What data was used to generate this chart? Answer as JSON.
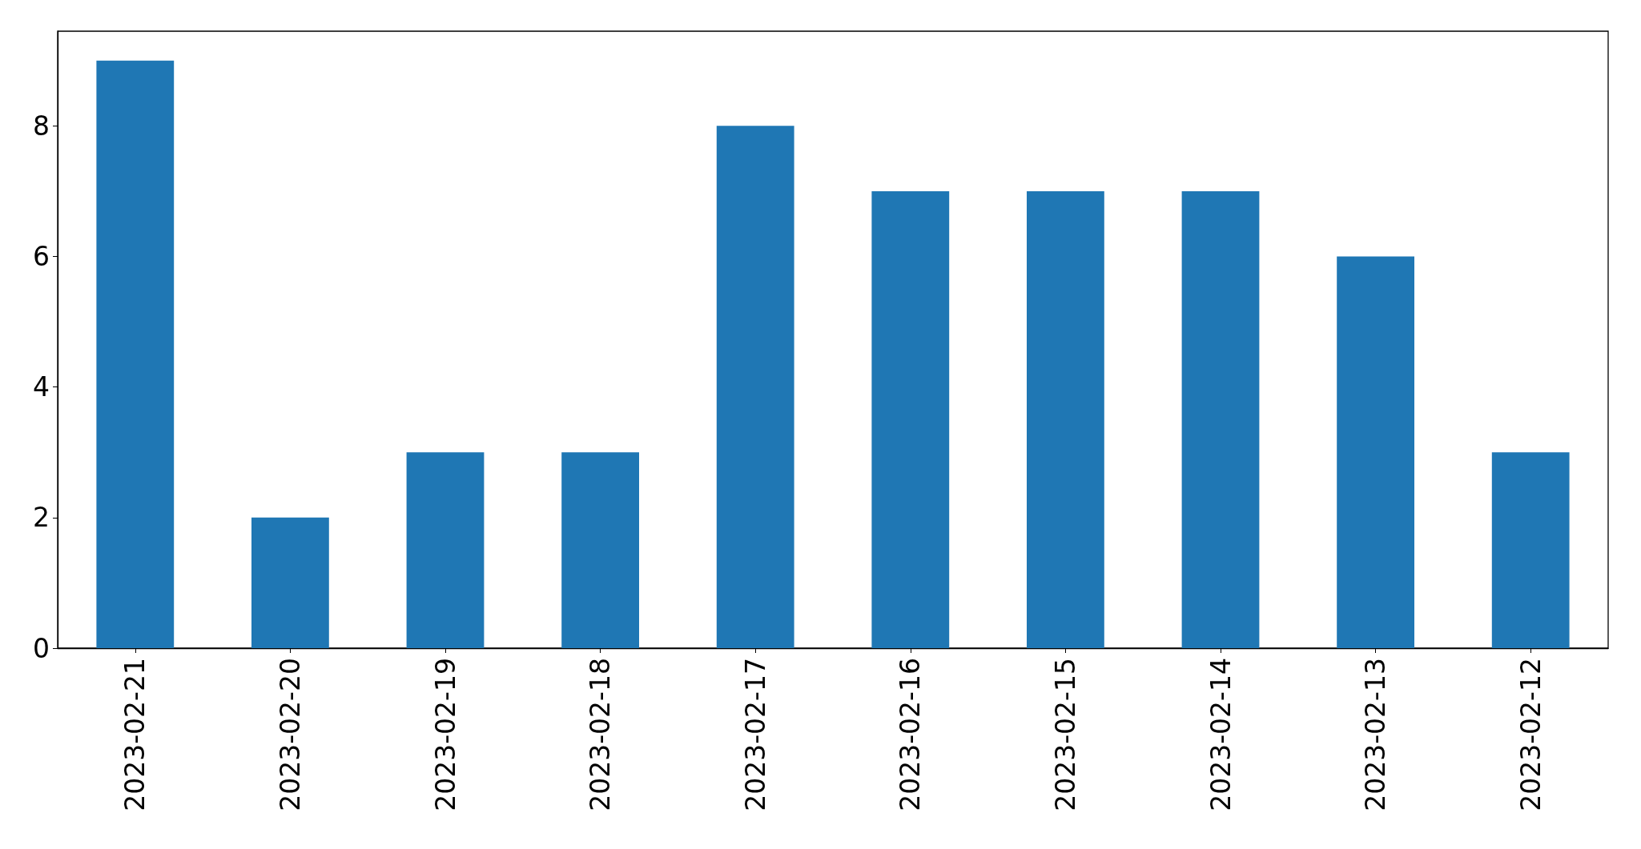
{
  "chart_data": {
    "type": "bar",
    "categories": [
      "2023-02-21",
      "2023-02-20",
      "2023-02-19",
      "2023-02-18",
      "2023-02-17",
      "2023-02-16",
      "2023-02-15",
      "2023-02-14",
      "2023-02-13",
      "2023-02-12"
    ],
    "values": [
      9,
      2,
      3,
      3,
      8,
      7,
      7,
      7,
      6,
      3
    ],
    "color": "#1f77b4",
    "ylim": [
      0,
      9.45
    ],
    "yticks": [
      0,
      2,
      4,
      6,
      8
    ],
    "grid": false
  }
}
